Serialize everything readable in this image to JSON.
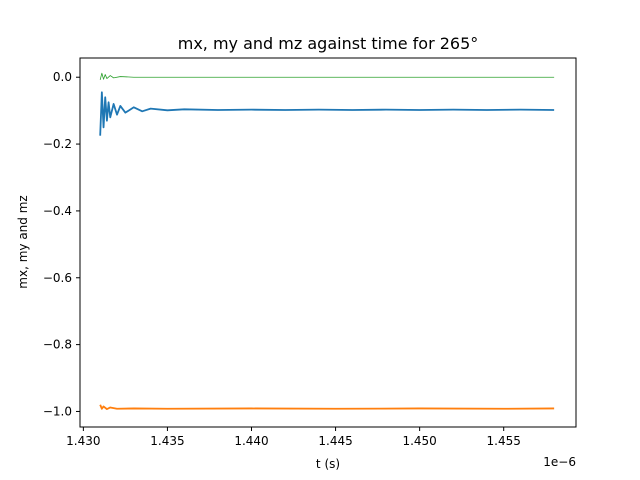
{
  "chart_data": {
    "type": "line",
    "title": "mx, my and mz against time for 265°",
    "xlabel": "t (s)",
    "ylabel": "mx, my and mz",
    "x_offset_label": "1e−6",
    "xlim": [
      1.4298,
      1.4593
    ],
    "ylim": [
      -1.0465,
      0.0575
    ],
    "x_ticks": [
      {
        "value": 1.43,
        "label": "1.430"
      },
      {
        "value": 1.435,
        "label": "1.435"
      },
      {
        "value": 1.44,
        "label": "1.440"
      },
      {
        "value": 1.445,
        "label": "1.445"
      },
      {
        "value": 1.45,
        "label": "1.450"
      },
      {
        "value": 1.455,
        "label": "1.455"
      }
    ],
    "y_ticks": [
      {
        "value": 0.0,
        "label": "0.0"
      },
      {
        "value": -0.2,
        "label": "−0.2"
      },
      {
        "value": -0.4,
        "label": "−0.4"
      },
      {
        "value": -0.6,
        "label": "−0.6"
      },
      {
        "value": -0.8,
        "label": "−0.8"
      },
      {
        "value": -1.0,
        "label": "−1.0"
      }
    ],
    "series": [
      {
        "color": "#1f77b4",
        "x": [
          1.431,
          1.4311,
          1.4312,
          1.4313,
          1.4314,
          1.4315,
          1.4316,
          1.4318,
          1.432,
          1.4322,
          1.4325,
          1.433,
          1.4335,
          1.434,
          1.435,
          1.436,
          1.438,
          1.44,
          1.442,
          1.444,
          1.446,
          1.448,
          1.45,
          1.452,
          1.454,
          1.456,
          1.458
        ],
        "y": [
          -0.175,
          -0.045,
          -0.15,
          -0.06,
          -0.13,
          -0.075,
          -0.12,
          -0.08,
          -0.112,
          -0.086,
          -0.106,
          -0.09,
          -0.102,
          -0.094,
          -0.099,
          -0.096,
          -0.098,
          -0.097,
          -0.098,
          -0.097,
          -0.098,
          -0.097,
          -0.098,
          -0.097,
          -0.098,
          -0.097,
          -0.098
        ]
      },
      {
        "color": "#ff7f0e",
        "x": [
          1.431,
          1.4311,
          1.4312,
          1.4314,
          1.4316,
          1.432,
          1.433,
          1.435,
          1.44,
          1.445,
          1.45,
          1.455,
          1.458
        ],
        "y": [
          -0.98,
          -0.992,
          -0.985,
          -0.993,
          -0.988,
          -0.992,
          -0.991,
          -0.992,
          -0.991,
          -0.992,
          -0.991,
          -0.992,
          -0.991
        ]
      },
      {
        "color": "#2ca02c",
        "x": [
          1.431,
          1.4311,
          1.4312,
          1.4313,
          1.4314,
          1.4316,
          1.4318,
          1.4322,
          1.433,
          1.435,
          1.44,
          1.445,
          1.45,
          1.455,
          1.458
        ],
        "y": [
          -0.008,
          0.012,
          -0.006,
          0.008,
          -0.004,
          0.005,
          -0.002,
          0.002,
          0.0,
          0.0,
          0.0,
          0.0,
          0.0,
          0.0,
          0.0
        ]
      }
    ]
  }
}
